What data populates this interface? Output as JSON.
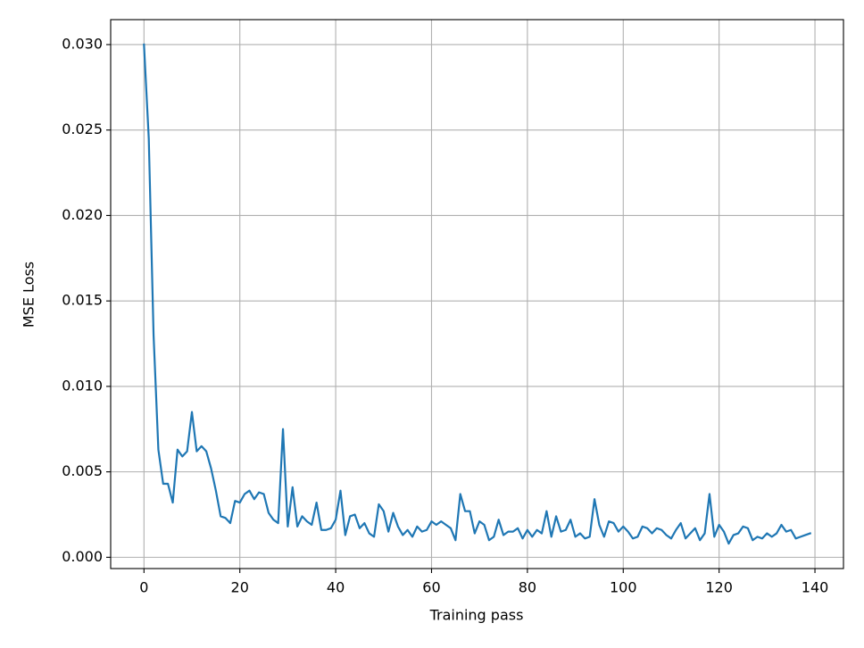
{
  "chart_data": {
    "type": "line",
    "xlabel": "Training pass",
    "ylabel": "MSE Loss",
    "x": [
      0,
      1,
      2,
      3,
      4,
      5,
      6,
      7,
      8,
      9,
      10,
      11,
      12,
      13,
      14,
      15,
      16,
      17,
      18,
      19,
      20,
      21,
      22,
      23,
      24,
      25,
      26,
      27,
      28,
      29,
      30,
      31,
      32,
      33,
      34,
      35,
      36,
      37,
      38,
      39,
      40,
      41,
      42,
      43,
      44,
      45,
      46,
      47,
      48,
      49,
      50,
      51,
      52,
      53,
      54,
      55,
      56,
      57,
      58,
      59,
      60,
      61,
      62,
      63,
      64,
      65,
      66,
      67,
      68,
      69,
      70,
      71,
      72,
      73,
      74,
      75,
      76,
      77,
      78,
      79,
      80,
      81,
      82,
      83,
      84,
      85,
      86,
      87,
      88,
      89,
      90,
      91,
      92,
      93,
      94,
      95,
      96,
      97,
      98,
      99,
      100,
      101,
      102,
      103,
      104,
      105,
      106,
      107,
      108,
      109,
      110,
      111,
      112,
      113,
      114,
      115,
      116,
      117,
      118,
      119,
      120,
      121,
      122,
      123,
      124,
      125,
      126,
      127,
      128,
      129,
      130,
      131,
      132,
      133,
      134,
      135,
      136,
      137,
      138,
      139
    ],
    "values": [
      0.03,
      0.0245,
      0.013,
      0.0063,
      0.0043,
      0.0043,
      0.0032,
      0.0063,
      0.0059,
      0.0062,
      0.0085,
      0.0062,
      0.0065,
      0.0062,
      0.0052,
      0.0039,
      0.0024,
      0.0023,
      0.002,
      0.0033,
      0.0032,
      0.0037,
      0.0039,
      0.0034,
      0.0038,
      0.0037,
      0.0026,
      0.0022,
      0.002,
      0.0075,
      0.0018,
      0.0041,
      0.0018,
      0.0024,
      0.0021,
      0.0019,
      0.0032,
      0.0016,
      0.0016,
      0.0017,
      0.0022,
      0.0039,
      0.0013,
      0.0024,
      0.0025,
      0.0017,
      0.002,
      0.0014,
      0.0012,
      0.0031,
      0.0027,
      0.0015,
      0.0026,
      0.0018,
      0.0013,
      0.0016,
      0.0012,
      0.0018,
      0.0015,
      0.0016,
      0.0021,
      0.0019,
      0.0021,
      0.0019,
      0.0017,
      0.001,
      0.0037,
      0.0027,
      0.0027,
      0.0014,
      0.0021,
      0.0019,
      0.001,
      0.0012,
      0.0022,
      0.0013,
      0.0015,
      0.0015,
      0.0017,
      0.0011,
      0.0016,
      0.0012,
      0.0016,
      0.0014,
      0.0027,
      0.0012,
      0.0024,
      0.0015,
      0.0016,
      0.0022,
      0.0012,
      0.0014,
      0.0011,
      0.0012,
      0.0034,
      0.0019,
      0.0012,
      0.0021,
      0.002,
      0.0015,
      0.0018,
      0.0015,
      0.0011,
      0.0012,
      0.0018,
      0.0017,
      0.0014,
      0.0017,
      0.0016,
      0.0013,
      0.0011,
      0.0016,
      0.002,
      0.0011,
      0.0014,
      0.0017,
      0.001,
      0.0014,
      0.0037,
      0.0012,
      0.0019,
      0.0015,
      0.0008,
      0.0013,
      0.0014,
      0.0018,
      0.0017,
      0.001,
      0.0012,
      0.0011,
      0.0014,
      0.0012,
      0.0014,
      0.0019,
      0.0015,
      0.0016,
      0.0011,
      0.0012,
      0.0013,
      0.0014
    ],
    "color": "#1f77b4",
    "xlim": [
      -6.95,
      145.95
    ],
    "ylim": [
      -0.00066,
      0.03146
    ],
    "xticks": [
      0,
      20,
      40,
      60,
      80,
      100,
      120,
      140
    ],
    "yticks": [
      {
        "value": 0,
        "label": "0.000"
      },
      {
        "value": 0.005,
        "label": "0.005"
      },
      {
        "value": 0.01,
        "label": "0.010"
      },
      {
        "value": 0.015,
        "label": "0.015"
      },
      {
        "value": 0.02,
        "label": "0.020"
      },
      {
        "value": 0.025,
        "label": "0.025"
      },
      {
        "value": 0.03,
        "label": "0.030"
      }
    ],
    "grid": true
  }
}
